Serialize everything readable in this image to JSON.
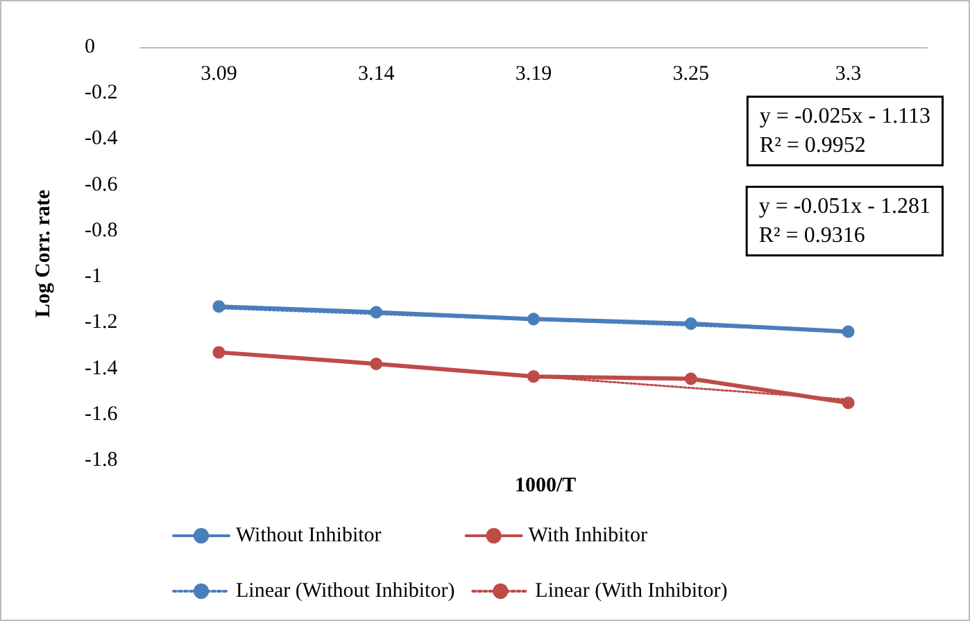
{
  "chart_data": {
    "type": "line",
    "xlabel": "1000/T",
    "ylabel": "Log Corr. rate",
    "categories": [
      "3.09",
      "3.14",
      "3.19",
      "3.25",
      "3.3"
    ],
    "series": [
      {
        "name": "Without Inhibitor",
        "color": "#4a7ebb",
        "values": [
          -1.13,
          -1.155,
          -1.185,
          -1.205,
          -1.24
        ]
      },
      {
        "name": "With Inhibitor",
        "color": "#be4b48",
        "values": [
          -1.33,
          -1.38,
          -1.435,
          -1.445,
          -1.55
        ]
      },
      {
        "name": "Linear (Without Inhibitor)",
        "color": "#4a7ebb",
        "values": [
          -1.138,
          -1.163,
          -1.188,
          -1.213,
          -1.238
        ],
        "line_style": "dotted",
        "marker": "none"
      },
      {
        "name": "Linear (With Inhibitor)",
        "color": "#be4b48",
        "values": [
          -1.332,
          -1.383,
          -1.434,
          -1.485,
          -1.536
        ],
        "line_style": "dotted",
        "marker": "none"
      }
    ],
    "ylim": [
      -1.8,
      0
    ],
    "yticks": [
      0,
      -0.2,
      -0.4,
      -0.6,
      -0.8,
      -1,
      -1.2,
      -1.4,
      -1.6,
      -1.8
    ],
    "annotations": [
      "y = -0.025x - 1.113\nR² = 0.9952",
      "y = -0.051x - 1.281\nR² = 0.9316"
    ],
    "marker": "circle",
    "line_style": "solid",
    "legend": "bottom",
    "grid": false
  }
}
